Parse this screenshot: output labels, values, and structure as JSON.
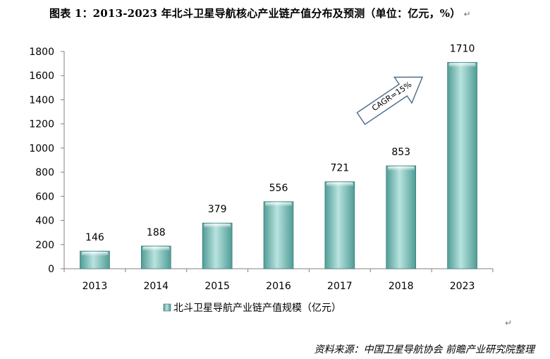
{
  "caption": "图表 1：2013-2023 年北斗卫星导航核心产业链产值分布及预测（单位：亿元，%）",
  "paragraph_mark": "↵",
  "source": "资料来源：中国卫星导航协会  前瞻产业研究院整理",
  "colors": {
    "bar_dark": "#4f9c96",
    "bar_mid": "#78c3bd",
    "bar_light": "#b9e3df",
    "bar_edge": "#2e6f6a",
    "axis": "#808080"
  },
  "chart_data": {
    "type": "bar",
    "title": "",
    "xlabel": "",
    "ylabel": "",
    "categories": [
      "2013",
      "2014",
      "2015",
      "2016",
      "2017",
      "2018",
      "2023"
    ],
    "series": [
      {
        "name": "北斗卫星导航产业链产值规模（亿元）",
        "values": [
          146,
          188,
          379,
          556,
          721,
          853,
          1710
        ]
      }
    ],
    "value_labels": [
      "146",
      "188",
      "379",
      "556",
      "721",
      "853",
      "1710"
    ],
    "ylim": [
      0,
      1800
    ],
    "yticks": [
      0,
      200,
      400,
      600,
      800,
      1000,
      1200,
      1400,
      1600,
      1800
    ],
    "grid": false,
    "legend_position": "bottom",
    "annotation": "CAGR=15%"
  }
}
